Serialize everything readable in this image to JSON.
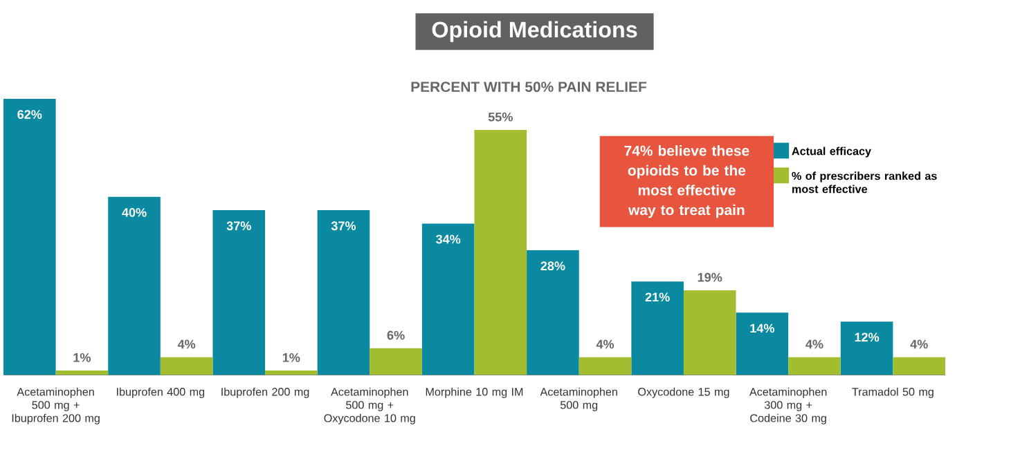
{
  "chart_data": {
    "type": "bar",
    "title": "Opioid Medications",
    "subtitle": "PERCENT WITH 50% PAIN RELIEF",
    "categories": [
      "Acetaminophen 500 mg + Ibuprofen 200 mg",
      "Ibuprofen 400 mg",
      "Ibuprofen 200 mg",
      "Acetaminophen 500 mg + Oxycodone 10 mg",
      "Morphine 10 mg IM",
      "Acetaminophen 500 mg",
      "Oxycodone 15 mg",
      "Acetaminophen 300 mg + Codeine 30 mg",
      "Tramadol 50 mg"
    ],
    "series": [
      {
        "name": "Actual efficacy",
        "color": "#0b89a1",
        "values": [
          62,
          40,
          37,
          37,
          34,
          28,
          21,
          14,
          12
        ],
        "value_labels": [
          "62%",
          "40%",
          "37%",
          "37%",
          "34%",
          "28%",
          "21%",
          "14%",
          "12%"
        ]
      },
      {
        "name": "% of prescribers ranked as most effective",
        "color": "#a3bd31",
        "values": [
          1,
          4,
          1,
          6,
          55,
          4,
          19,
          4,
          4
        ],
        "value_labels": [
          "1%",
          "4%",
          "1%",
          "6%",
          "55%",
          "4%",
          "19%",
          "4%",
          "4%"
        ]
      }
    ],
    "annotations": [
      "74% believe these opioids to be the most effective way to treat pain"
    ],
    "legend": "top right"
  }
}
